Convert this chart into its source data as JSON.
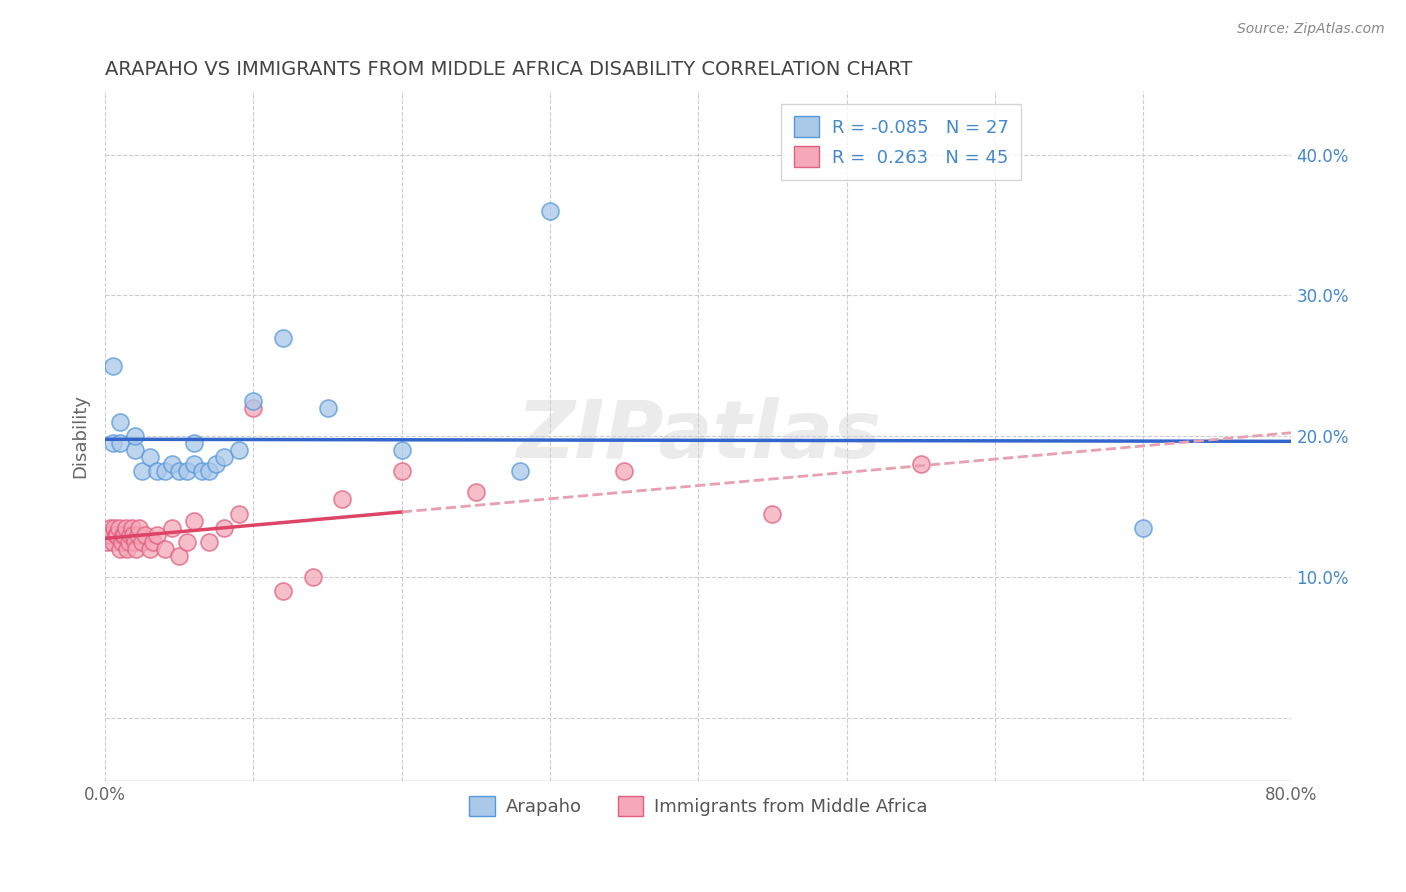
{
  "title": "ARAPAHO VS IMMIGRANTS FROM MIDDLE AFRICA DISABILITY CORRELATION CHART",
  "source": "Source: ZipAtlas.com",
  "ylabel_label": "Disability",
  "xlim": [
    0.0,
    0.8
  ],
  "ylim": [
    -0.045,
    0.445
  ],
  "x_ticks": [
    0.0,
    0.1,
    0.2,
    0.3,
    0.4,
    0.5,
    0.6,
    0.7,
    0.8
  ],
  "x_tick_labels": [
    "0.0%",
    "",
    "",
    "",
    "",
    "",
    "",
    "",
    "80.0%"
  ],
  "y_ticks": [
    0.0,
    0.1,
    0.2,
    0.3,
    0.4
  ],
  "y_tick_labels_right": [
    "",
    "10.0%",
    "20.0%",
    "30.0%",
    "40.0%"
  ],
  "arapaho_R": -0.085,
  "arapaho_N": 27,
  "immigrants_R": 0.263,
  "immigrants_N": 45,
  "arapaho_color": "#aac8e8",
  "immigrants_color": "#f4a8b8",
  "arapaho_edge_color": "#5599dd",
  "immigrants_edge_color": "#e06080",
  "arapaho_line_color": "#3366cc",
  "immigrants_line_color": "#dd4466",
  "immigrants_dashed_color": "#e8a0b0",
  "watermark": "ZIPatlas",
  "grid_color": "#cccccc",
  "title_color": "#444444",
  "right_tick_color": "#4488cc",
  "arapaho_points_x": [
    0.005,
    0.01,
    0.02,
    0.025,
    0.03,
    0.035,
    0.04,
    0.045,
    0.05,
    0.055,
    0.06,
    0.065,
    0.07,
    0.075,
    0.08,
    0.09,
    0.1,
    0.12,
    0.15,
    0.2,
    0.3,
    0.005,
    0.01,
    0.02,
    0.06,
    0.28,
    0.7
  ],
  "arapaho_points_y": [
    0.195,
    0.195,
    0.19,
    0.175,
    0.185,
    0.175,
    0.175,
    0.18,
    0.175,
    0.175,
    0.18,
    0.175,
    0.175,
    0.18,
    0.185,
    0.19,
    0.225,
    0.27,
    0.22,
    0.19,
    0.36,
    0.25,
    0.21,
    0.2,
    0.195,
    0.175,
    0.135
  ],
  "immigrants_points_x": [
    0.001,
    0.002,
    0.003,
    0.004,
    0.005,
    0.006,
    0.007,
    0.008,
    0.009,
    0.01,
    0.011,
    0.012,
    0.013,
    0.014,
    0.015,
    0.016,
    0.017,
    0.018,
    0.019,
    0.02,
    0.021,
    0.022,
    0.023,
    0.025,
    0.027,
    0.03,
    0.032,
    0.035,
    0.04,
    0.045,
    0.05,
    0.055,
    0.06,
    0.07,
    0.08,
    0.09,
    0.1,
    0.12,
    0.14,
    0.16,
    0.2,
    0.25,
    0.35,
    0.45,
    0.55
  ],
  "immigrants_points_y": [
    0.125,
    0.13,
    0.135,
    0.13,
    0.125,
    0.135,
    0.13,
    0.13,
    0.135,
    0.12,
    0.125,
    0.13,
    0.13,
    0.135,
    0.12,
    0.125,
    0.13,
    0.135,
    0.13,
    0.125,
    0.12,
    0.13,
    0.135,
    0.125,
    0.13,
    0.12,
    0.125,
    0.13,
    0.12,
    0.135,
    0.115,
    0.125,
    0.14,
    0.125,
    0.135,
    0.145,
    0.22,
    0.09,
    0.1,
    0.155,
    0.175,
    0.16,
    0.175,
    0.145,
    0.18
  ],
  "legend_label_arapaho": "R = -0.085   N = 27",
  "legend_label_immigrants": "R =  0.263   N = 45"
}
